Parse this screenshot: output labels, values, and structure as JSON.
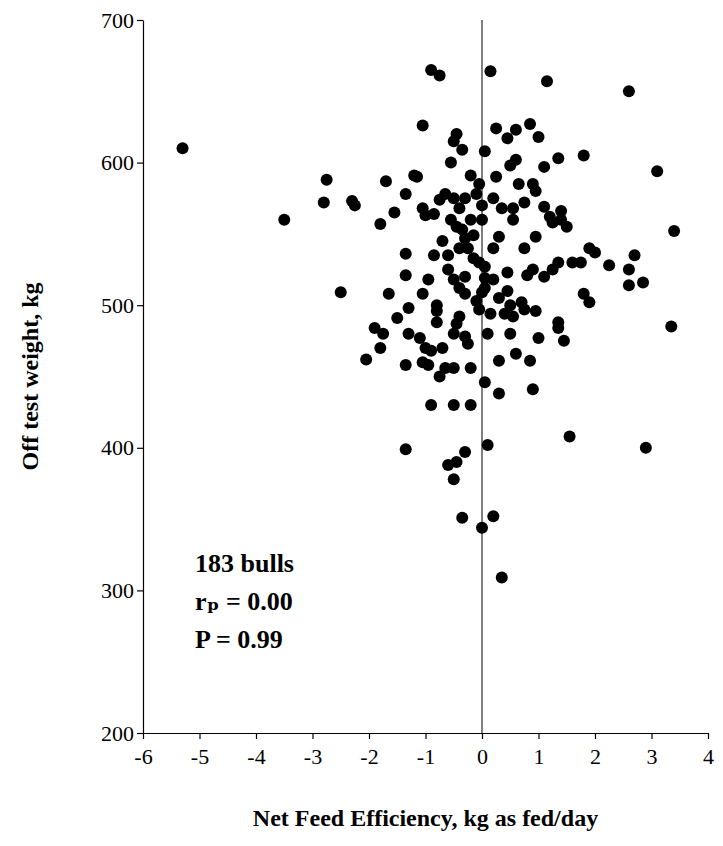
{
  "chart_data": {
    "type": "scatter",
    "xlabel": "Net Feed Efficiency, kg as fed/day",
    "ylabel": "Off test weight, kg",
    "xlim": [
      -6,
      4
    ],
    "ylim": [
      200,
      700
    ],
    "xticks": [
      -6,
      -5,
      -4,
      -3,
      -2,
      -1,
      0,
      1,
      2,
      3,
      4
    ],
    "yticks": [
      200,
      300,
      400,
      500,
      600,
      700
    ],
    "x_reference": 0,
    "annotations": [
      "183 bulls",
      "rₚ = 0.00",
      "P = 0.99"
    ],
    "series": [
      {
        "color": "#000000",
        "marker": "circle",
        "x": [
          -0.9,
          -0.75,
          0.15,
          1.15,
          2.6,
          -5.3,
          -3.5,
          -2.75,
          -2.8,
          -2.3,
          -2.25,
          -1.7,
          -1.35,
          -1.2,
          -1.05,
          -0.5,
          -0.45,
          -0.35,
          -0.55,
          -0.2,
          0.25,
          0.6,
          0.85,
          1.0,
          0.45,
          0.05,
          -0.05,
          0.25,
          0.5,
          0.6,
          0.9,
          1.1,
          1.35,
          1.8,
          3.1,
          3.4,
          0.95,
          1.1,
          1.25,
          1.4,
          1.4,
          0.75,
          0.2,
          0.35,
          0.55,
          0.55,
          0.3,
          0.95,
          -1.55,
          -1.8,
          -1.0,
          -1.05,
          -0.85,
          -0.75,
          -0.65,
          -0.5,
          -0.3,
          -0.4,
          -0.1,
          -0.2,
          -0.35,
          -0.3,
          -0.4,
          -0.55,
          -0.45,
          -0.15,
          0.0,
          -0.6,
          -0.85,
          -1.35,
          -1.35,
          -2.5,
          -1.65,
          -1.9,
          -2.05,
          -1.8,
          -1.5,
          -1.75,
          -1.3,
          -1.05,
          -0.8,
          -0.8,
          -0.8,
          -0.4,
          -0.3,
          -0.5,
          -0.3,
          -0.1,
          0.05,
          0.05,
          0.2,
          0.3,
          0.5,
          0.45,
          0.45,
          0.4,
          0.55,
          0.7,
          0.75,
          0.9,
          0.95,
          1.0,
          1.1,
          1.25,
          1.35,
          1.35,
          1.35,
          1.45,
          1.6,
          1.75,
          1.8,
          1.9,
          2.0,
          1.9,
          2.25,
          2.6,
          2.6,
          2.7,
          2.85,
          3.35,
          2.9,
          1.55,
          0.85,
          0.9,
          0.6,
          0.3,
          0.3,
          0.1,
          0.05,
          -0.05,
          0.0,
          -0.25,
          -0.3,
          -0.45,
          -0.5,
          -0.65,
          -0.5,
          -0.2,
          -0.9,
          -0.95,
          -1.05,
          -0.75,
          -1.1,
          -1.3,
          -1.35,
          -0.9,
          -0.5,
          -0.2,
          -1.35,
          -0.6,
          -0.5,
          -0.45,
          -0.3,
          0.1,
          -0.35,
          0.0,
          0.2,
          0.35,
          0.05,
          -0.05,
          -0.6,
          -0.7,
          0.0,
          0.75,
          0.2,
          -1.0,
          -0.4,
          -0.25,
          1.5,
          0.65,
          -0.15,
          0.15,
          -1.15,
          0.5,
          -0.7,
          1.2,
          0.8,
          -0.95
        ],
        "y": [
          665,
          661,
          664,
          657,
          650,
          610,
          560,
          588,
          572,
          573,
          570,
          587,
          578,
          591,
          626,
          615,
          620,
          609,
          600,
          591,
          624,
          623,
          627,
          618,
          617,
          608,
          585,
          590,
          598,
          602,
          585,
          597,
          603,
          605,
          594,
          552,
          580,
          569,
          558,
          560,
          566,
          572,
          575,
          568,
          560,
          568,
          548,
          548,
          565,
          557,
          563,
          568,
          564,
          574,
          578,
          575,
          575,
          568,
          578,
          560,
          553,
          547,
          540,
          560,
          555,
          549,
          560,
          535,
          535,
          536,
          521,
          509,
          508,
          484,
          462,
          470,
          491,
          480,
          498,
          508,
          500,
          496,
          488,
          492,
          520,
          518,
          508,
          503,
          527,
          512,
          518,
          505,
          500,
          523,
          510,
          494,
          492,
          502,
          497,
          525,
          496,
          477,
          520,
          525,
          530,
          488,
          484,
          475,
          530,
          530,
          508,
          540,
          537,
          502,
          528,
          525,
          514,
          535,
          516,
          485,
          400,
          408,
          461,
          441,
          466,
          461,
          438,
          480,
          446,
          497,
          509,
          473,
          478,
          487,
          480,
          456,
          456,
          456,
          468,
          458,
          460,
          450,
          477,
          480,
          458,
          430,
          430,
          430,
          399,
          388,
          378,
          390,
          397,
          402,
          351,
          344,
          352,
          309,
          519,
          530,
          525,
          545,
          570,
          540,
          540,
          470,
          512,
          540,
          555,
          585,
          533,
          494,
          590,
          480,
          470,
          562,
          521,
          518
        ]
      }
    ]
  }
}
